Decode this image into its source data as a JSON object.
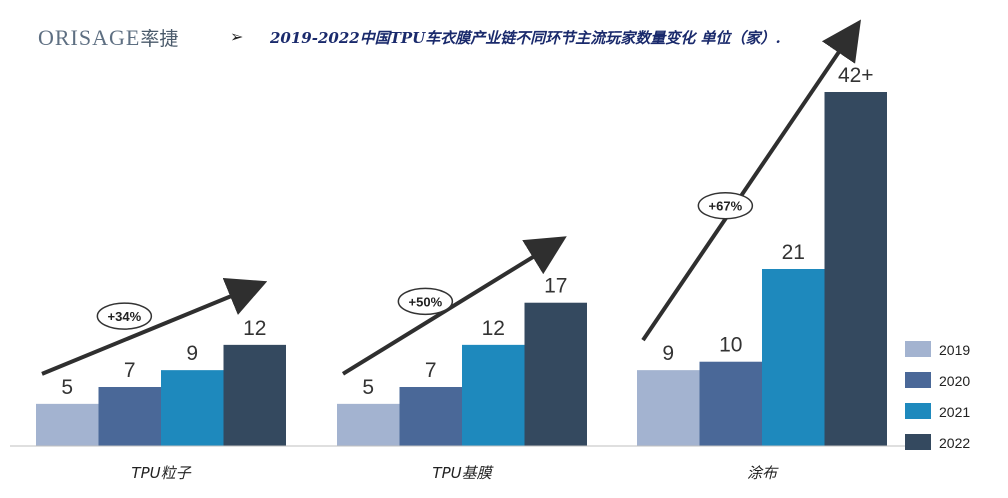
{
  "header": {
    "logo_latin": "ORISAGE",
    "logo_cn": "率捷",
    "bullet": "➢",
    "title": "2019-2022中国TPU车衣膜产业链不同环节主流玩家数量变化 单位（家）."
  },
  "chart_data": {
    "type": "bar",
    "title": "2019-2022中国TPU车衣膜产业链不同环节主流玩家数量变化 单位（家）.",
    "categories": [
      "TPU粒子",
      "TPU基膜",
      "涂布"
    ],
    "series": [
      {
        "name": "2019",
        "values": [
          5,
          5,
          9
        ],
        "labels": [
          "5",
          "5",
          "9"
        ],
        "color": "#a3b3d0"
      },
      {
        "name": "2020",
        "values": [
          7,
          7,
          10
        ],
        "labels": [
          "7",
          "7",
          "10"
        ],
        "color": "#4a6898"
      },
      {
        "name": "2021",
        "values": [
          9,
          12,
          21
        ],
        "labels": [
          "9",
          "12",
          "21"
        ],
        "color": "#1e89bd"
      },
      {
        "name": "2022",
        "values": [
          12,
          17,
          42
        ],
        "labels": [
          "12",
          "17",
          "42+"
        ],
        "color": "#34495f"
      }
    ],
    "growth_annotations": [
      "+34%",
      "+50%",
      "+67%"
    ],
    "ylim": [
      0,
      42
    ],
    "legend_position": "bottom-right",
    "grid": false
  }
}
